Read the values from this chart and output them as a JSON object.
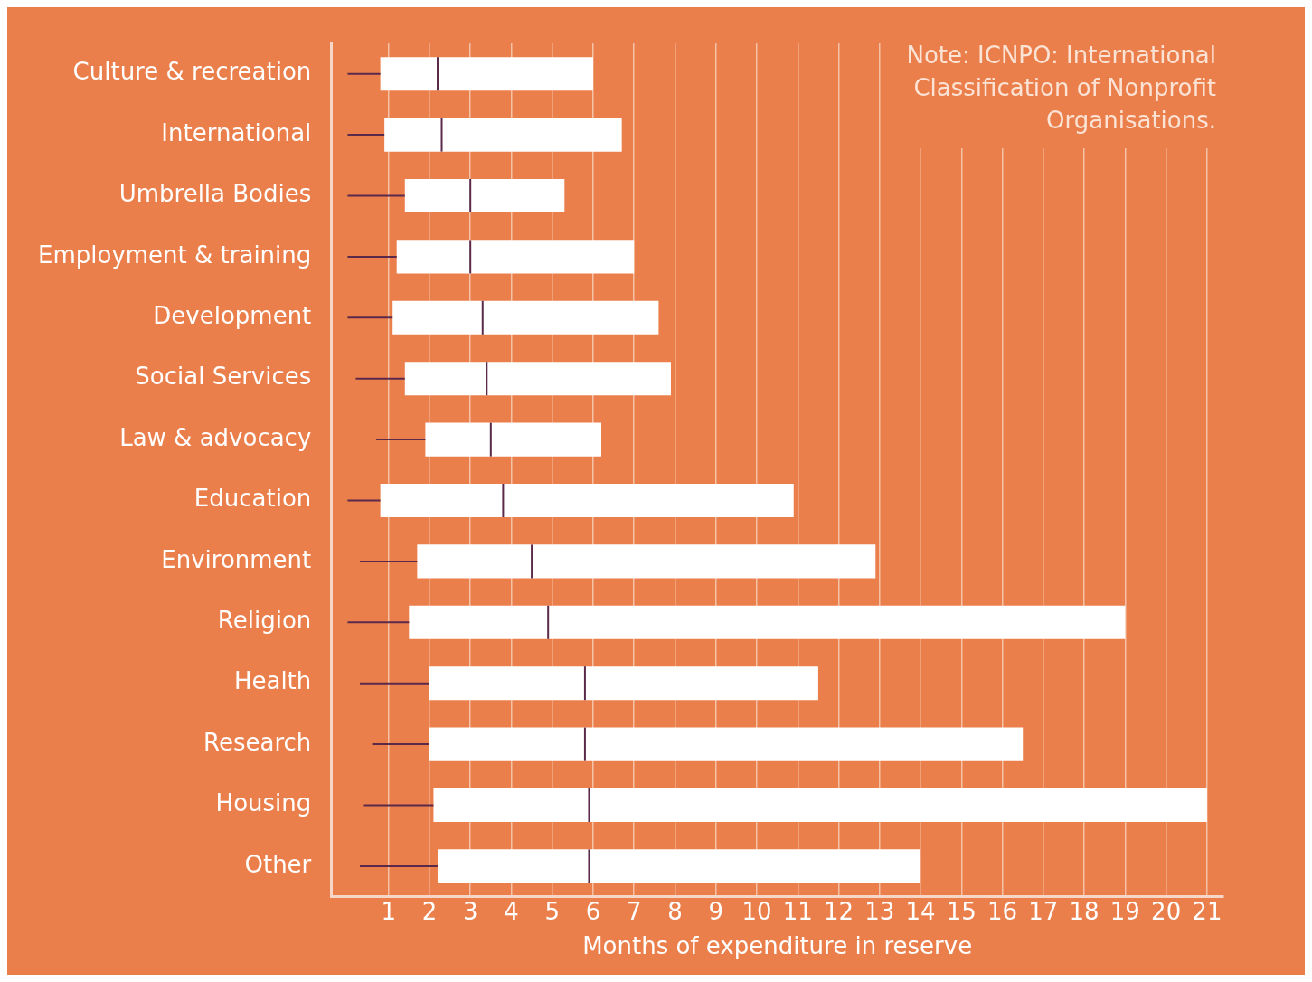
{
  "chart_data": {
    "type": "box",
    "orientation": "horizontal",
    "xlabel": "Months of expenditure in reserve",
    "categories": [
      "Culture & recreation",
      "International",
      "Umbrella Bodies",
      "Employment & training",
      "Development",
      "Social Services",
      "Law & advocacy",
      "Education",
      "Environment",
      "Religion",
      "Health",
      "Research",
      "Housing",
      "Other"
    ],
    "boxes": [
      {
        "low": 0,
        "q1": 0.8,
        "median": 2.2,
        "q3": 6.0,
        "high": 6.0
      },
      {
        "low": 0,
        "q1": 0.9,
        "median": 2.3,
        "q3": 6.7,
        "high": 6.7
      },
      {
        "low": 0,
        "q1": 1.4,
        "median": 3.0,
        "q3": 5.3,
        "high": 5.3
      },
      {
        "low": 0,
        "q1": 1.2,
        "median": 3.0,
        "q3": 7.0,
        "high": 7.0
      },
      {
        "low": 0,
        "q1": 1.1,
        "median": 3.3,
        "q3": 7.6,
        "high": 7.6
      },
      {
        "low": 0.2,
        "q1": 1.4,
        "median": 3.4,
        "q3": 7.9,
        "high": 7.9
      },
      {
        "low": 0.7,
        "q1": 1.9,
        "median": 3.5,
        "q3": 6.2,
        "high": 6.2
      },
      {
        "low": 0,
        "q1": 0.8,
        "median": 3.8,
        "q3": 10.9,
        "high": 10.9
      },
      {
        "low": 0.3,
        "q1": 1.7,
        "median": 4.5,
        "q3": 12.9,
        "high": 12.9
      },
      {
        "low": 0,
        "q1": 1.5,
        "median": 4.9,
        "q3": 19.0,
        "high": 19.0
      },
      {
        "low": 0.3,
        "q1": 2.0,
        "median": 5.8,
        "q3": 11.5,
        "high": 11.5
      },
      {
        "low": 0.6,
        "q1": 2.0,
        "median": 5.8,
        "q3": 16.5,
        "high": 16.5
      },
      {
        "low": 0.4,
        "q1": 2.1,
        "median": 5.9,
        "q3": 21.0,
        "high": 21.0
      },
      {
        "low": 0.3,
        "q1": 2.2,
        "median": 5.9,
        "q3": 14.0,
        "high": 14.0
      }
    ],
    "color": "#ffffff",
    "xlim": [
      -0.4,
      21.4
    ],
    "xticks": [
      1,
      2,
      3,
      4,
      5,
      6,
      7,
      8,
      9,
      10,
      11,
      12,
      13,
      14,
      15,
      16,
      17,
      18,
      19,
      20,
      21
    ],
    "grid": "x",
    "legend": false,
    "annotations": [
      "Note: ICNPO: International Classification of Nonprofit Organisations."
    ]
  }
}
